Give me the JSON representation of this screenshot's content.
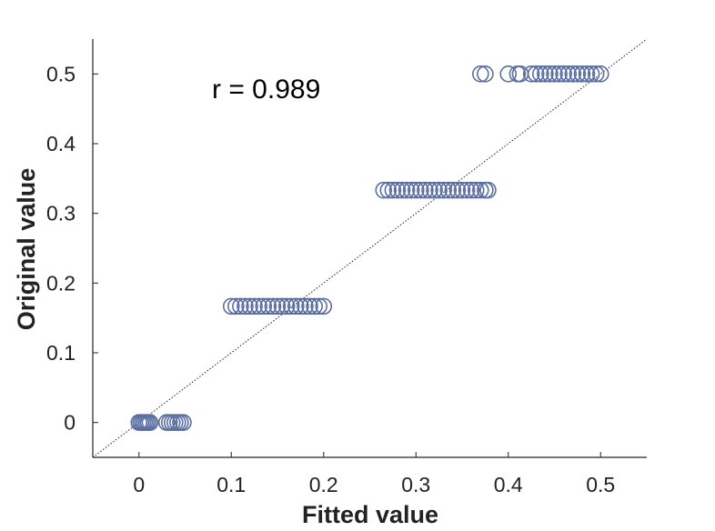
{
  "chart_data": {
    "type": "scatter",
    "title": "",
    "xlabel": "Fitted value",
    "ylabel": "Original value",
    "xlim": [
      -0.05,
      0.55
    ],
    "ylim": [
      -0.05,
      0.55
    ],
    "xticks": [
      0,
      0.1,
      0.2,
      0.3,
      0.4,
      0.5
    ],
    "yticks": [
      0,
      0.1,
      0.2,
      0.3,
      0.4,
      0.5
    ],
    "xtick_labels": [
      "0",
      "0.1",
      "0.2",
      "0.3",
      "0.4",
      "0.5"
    ],
    "ytick_labels": [
      "0",
      "0.1",
      "0.2",
      "0.3",
      "0.4",
      "0.5"
    ],
    "grid": false,
    "legend": "none",
    "annotation": "r = 0.989",
    "reference_line": {
      "from": [
        -0.05,
        -0.05
      ],
      "to": [
        0.55,
        0.55
      ],
      "style": "dotted"
    },
    "marker": "open-circle",
    "marker_color": "#5b6fa0",
    "series": [
      {
        "x": [
          0.0,
          0.002,
          0.004,
          0.006,
          0.008,
          0.01,
          0.012,
          0.03,
          0.033,
          0.036,
          0.039,
          0.042,
          0.045,
          0.048
        ],
        "y": [
          0,
          0,
          0,
          0,
          0,
          0,
          0,
          0,
          0,
          0,
          0,
          0,
          0,
          0
        ]
      },
      {
        "x": [
          0.1,
          0.105,
          0.11,
          0.115,
          0.12,
          0.125,
          0.13,
          0.135,
          0.14,
          0.145,
          0.15,
          0.155,
          0.16,
          0.165,
          0.17,
          0.175,
          0.18,
          0.185,
          0.19,
          0.195,
          0.2
        ],
        "y": [
          0.1667,
          0.1667,
          0.1667,
          0.1667,
          0.1667,
          0.1667,
          0.1667,
          0.1667,
          0.1667,
          0.1667,
          0.1667,
          0.1667,
          0.1667,
          0.1667,
          0.1667,
          0.1667,
          0.1667,
          0.1667,
          0.1667,
          0.1667,
          0.1667
        ]
      },
      {
        "x": [
          0.265,
          0.27,
          0.275,
          0.28,
          0.285,
          0.29,
          0.295,
          0.3,
          0.305,
          0.31,
          0.315,
          0.32,
          0.325,
          0.33,
          0.335,
          0.34,
          0.345,
          0.35,
          0.355,
          0.36,
          0.365,
          0.37,
          0.375,
          0.378
        ],
        "y": [
          0.3333,
          0.3333,
          0.3333,
          0.3333,
          0.3333,
          0.3333,
          0.3333,
          0.3333,
          0.3333,
          0.3333,
          0.3333,
          0.3333,
          0.3333,
          0.3333,
          0.3333,
          0.3333,
          0.3333,
          0.3333,
          0.3333,
          0.3333,
          0.3333,
          0.3333,
          0.3333,
          0.3333
        ]
      },
      {
        "x": [
          0.37,
          0.375,
          0.4,
          0.41,
          0.413,
          0.425,
          0.43,
          0.435,
          0.44,
          0.445,
          0.45,
          0.455,
          0.46,
          0.465,
          0.47,
          0.475,
          0.48,
          0.485,
          0.49,
          0.495,
          0.5
        ],
        "y": [
          0.5,
          0.5,
          0.5,
          0.5,
          0.5,
          0.5,
          0.5,
          0.5,
          0.5,
          0.5,
          0.5,
          0.5,
          0.5,
          0.5,
          0.5,
          0.5,
          0.5,
          0.5,
          0.5,
          0.5,
          0.5
        ]
      }
    ]
  }
}
